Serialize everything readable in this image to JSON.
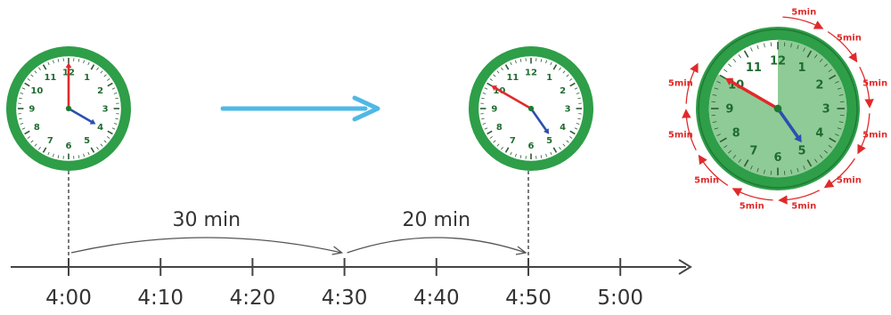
{
  "clock_numbers": [
    "12",
    "1",
    "2",
    "3",
    "4",
    "5",
    "6",
    "7",
    "8",
    "9",
    "10",
    "11"
  ],
  "clock_start": {
    "hour": 4,
    "minute": 0
  },
  "clock_end": {
    "hour": 4,
    "minute": 50
  },
  "clock_large": {
    "hour": 4,
    "minute": 50,
    "elapsed_minutes": 50
  },
  "timeline": {
    "ticks": [
      "4:00",
      "4:10",
      "4:20",
      "4:30",
      "4:40",
      "4:50",
      "5:00"
    ],
    "intervals": [
      {
        "label": "30 min",
        "from": "4:00",
        "to": "4:30"
      },
      {
        "label": "20 min",
        "from": "4:30",
        "to": "4:50"
      }
    ]
  },
  "five_min_label": "5min",
  "colors": {
    "clock_rim": "#2e9e48",
    "clock_face": "#ffffff",
    "numbers": "#1f6b2f",
    "minute_hand": "#e02a2a",
    "hour_hand": "#2b4fb0",
    "elapsed_fill": "#8fcb96",
    "arrow": "#4fb8e6",
    "axis": "#444444",
    "five_min": "#e02a2a"
  }
}
